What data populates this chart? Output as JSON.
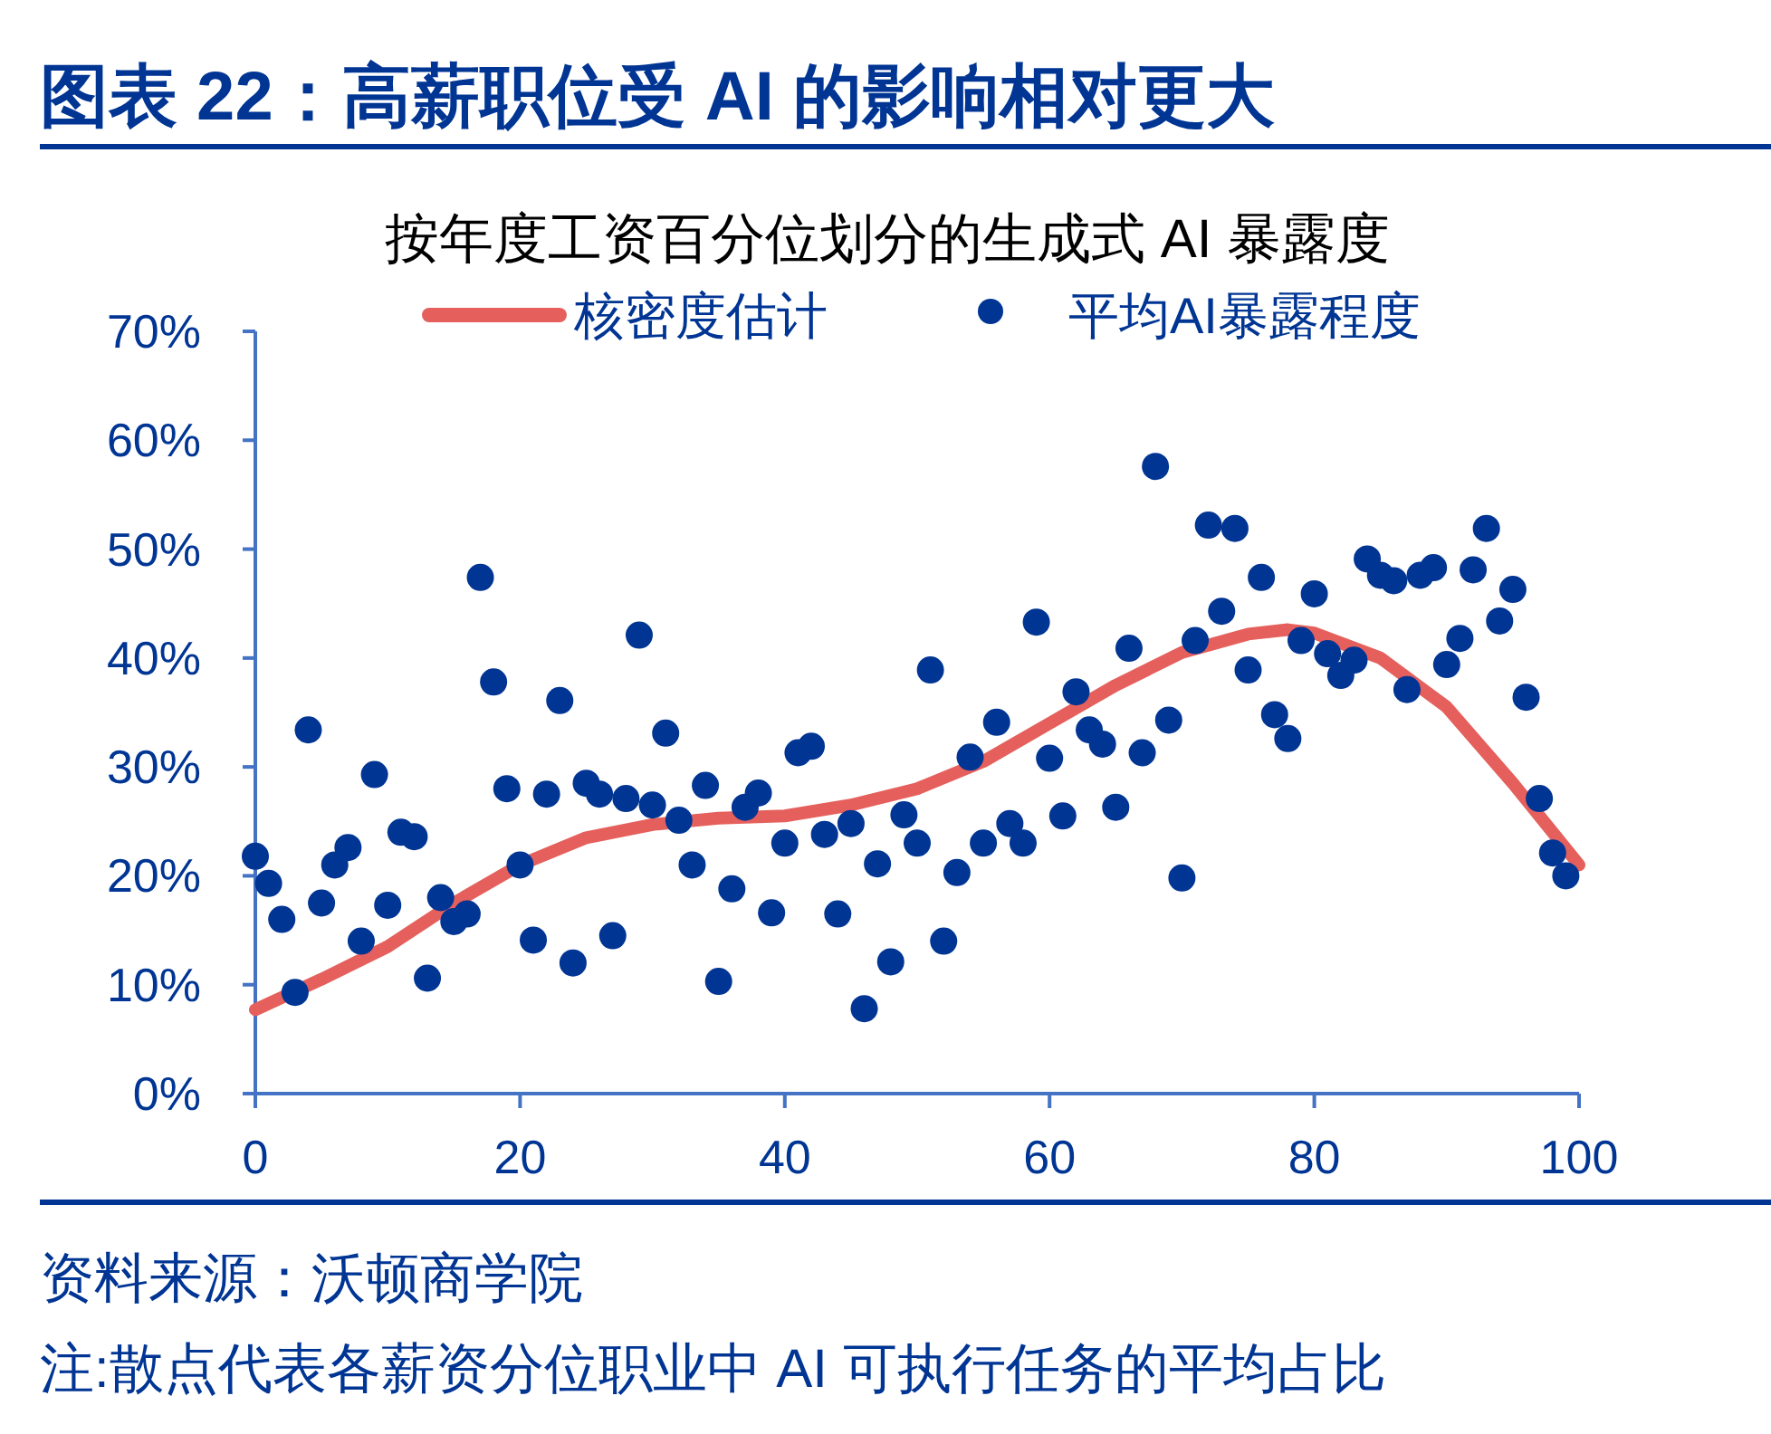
{
  "chart_data": {
    "type": "scatter",
    "title": "图表 22：高薪职位受 AI 的影响相对更大",
    "subtitle": "按年度工资百分位划分的生成式 AI 暴露度",
    "annotations": [
      "资料来源：沃顿商学院",
      "注:散点代表各薪资分位职业中 AI 可执行任务的平均占比"
    ],
    "xlim": [
      0,
      100
    ],
    "xticks": [
      0,
      20,
      40,
      60,
      80,
      100
    ],
    "ylim": [
      0,
      70
    ],
    "yticks": [
      {
        "value": 0,
        "label": "0%"
      },
      {
        "value": 10,
        "label": "10%"
      },
      {
        "value": 20,
        "label": "20%"
      },
      {
        "value": 30,
        "label": "30%"
      },
      {
        "value": 40,
        "label": "40%"
      },
      {
        "value": 50,
        "label": "50%"
      },
      {
        "value": 60,
        "label": "60%"
      },
      {
        "value": 70,
        "label": "70%"
      }
    ],
    "grid": false,
    "legend": "top",
    "series": [
      {
        "name": "核密度估计",
        "type": "line",
        "color": "#e5605c",
        "marker": "none",
        "line_style": "solid",
        "x": [
          0,
          5,
          10,
          15,
          20,
          25,
          30,
          35,
          40,
          45,
          50,
          55,
          60,
          65,
          70,
          75,
          78,
          80,
          85,
          90,
          95,
          100
        ],
        "values": [
          7.7,
          10.5,
          13.5,
          17.5,
          21,
          23.5,
          24.7,
          25.3,
          25.5,
          26.5,
          28,
          30.5,
          34,
          37.5,
          40.5,
          42.2,
          42.6,
          42.3,
          40,
          35.5,
          28.5,
          21
        ]
      },
      {
        "name": "平均AI暴露程度",
        "color": "#003594",
        "marker": "circle",
        "x": [
          0,
          1,
          2,
          3,
          4,
          5,
          6,
          7,
          8,
          9,
          10,
          11,
          12,
          13,
          14,
          15,
          16,
          17,
          18,
          19,
          20,
          21,
          22,
          23,
          24,
          25,
          26,
          27,
          28,
          29,
          30,
          31,
          32,
          33,
          34,
          35,
          36,
          37,
          38,
          39,
          40,
          41,
          42,
          43,
          44,
          45,
          46,
          47,
          48,
          49,
          50,
          51,
          52,
          53,
          54,
          55,
          56,
          57,
          58,
          59,
          60,
          61,
          62,
          63,
          64,
          65,
          66,
          67,
          68,
          69,
          70,
          71,
          72,
          73,
          74,
          75,
          76,
          77,
          78,
          79,
          80,
          81,
          82,
          83,
          84,
          85,
          86,
          87,
          88,
          89,
          90,
          91,
          92,
          93,
          94,
          95,
          96,
          97,
          98,
          99
        ],
        "values": [
          21.8,
          19.3,
          16.0,
          9.3,
          33.4,
          17.5,
          21.0,
          22.6,
          14.0,
          29.3,
          17.3,
          24.0,
          23.6,
          10.6,
          18.0,
          15.8,
          16.5,
          47.4,
          37.8,
          28.0,
          21.0,
          14.1,
          27.5,
          36.1,
          12.0,
          28.5,
          27.5,
          14.5,
          27.1,
          42.1,
          26.5,
          33.1,
          25.1,
          21.0,
          28.3,
          10.3,
          18.8,
          26.3,
          27.6,
          16.6,
          23.0,
          31.3,
          31.9,
          23.8,
          16.5,
          24.8,
          7.8,
          21.1,
          12.1,
          25.6,
          23.0,
          38.9,
          14.0,
          20.3,
          30.9,
          23.0,
          34.1,
          24.8,
          23.0,
          43.3,
          30.8,
          25.5,
          36.9,
          33.4,
          32.1,
          26.3,
          40.9,
          31.3,
          57.6,
          34.3,
          19.8,
          41.6,
          52.2,
          44.3,
          51.9,
          38.9,
          47.4,
          34.8,
          32.6,
          41.6,
          45.9,
          40.4,
          38.4,
          39.8,
          49.1,
          47.6,
          47.1,
          37.1,
          47.6,
          48.3,
          39.4,
          41.8,
          48.1,
          51.9,
          43.4,
          46.3,
          36.4,
          27.1,
          22.1,
          20.0
        ]
      }
    ]
  }
}
